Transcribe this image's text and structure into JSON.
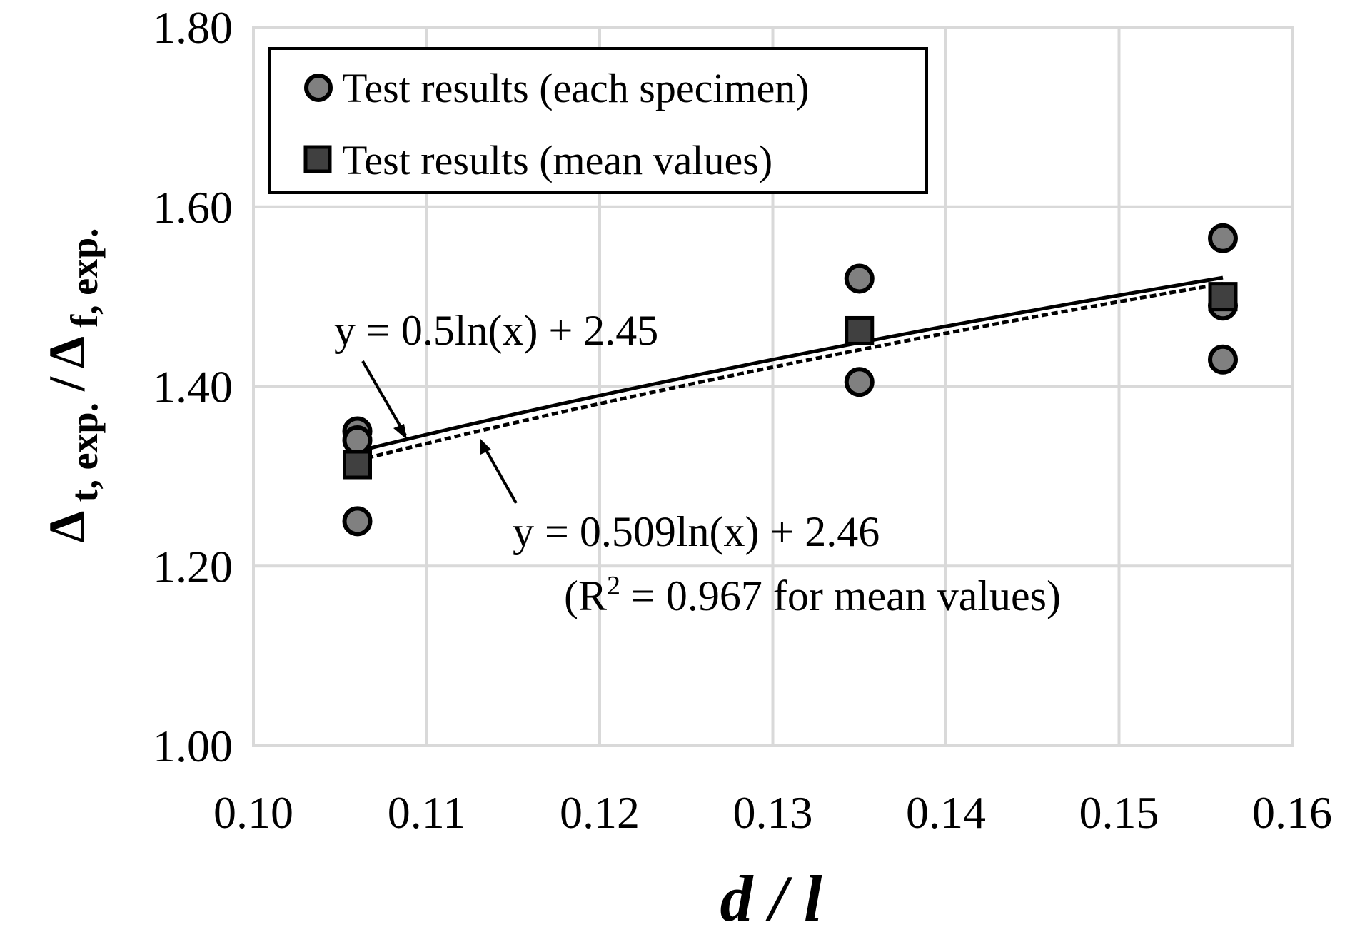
{
  "chart_data": {
    "type": "scatter",
    "title": "",
    "xlabel": "d / l",
    "ylabel": {
      "symbol1": "Δ",
      "sub1": "t, exp.",
      "slash": "/",
      "symbol2": "Δ",
      "sub2": "f, exp."
    },
    "xlim": [
      0.1,
      0.16
    ],
    "ylim": [
      1.0,
      1.8
    ],
    "xticks": [
      "0.10",
      "0.11",
      "0.12",
      "0.13",
      "0.14",
      "0.15",
      "0.16"
    ],
    "yticks": [
      "1.00",
      "1.20",
      "1.40",
      "1.60",
      "1.80"
    ],
    "grid": true,
    "legend_position": "top-left",
    "series": [
      {
        "name": "Test results (each specimen)",
        "marker": "circle",
        "color": "#808080",
        "points": [
          {
            "x": 0.106,
            "y": 1.35
          },
          {
            "x": 0.106,
            "y": 1.34
          },
          {
            "x": 0.106,
            "y": 1.25
          },
          {
            "x": 0.135,
            "y": 1.52
          },
          {
            "x": 0.135,
            "y": 1.405
          },
          {
            "x": 0.156,
            "y": 1.565
          },
          {
            "x": 0.156,
            "y": 1.49
          },
          {
            "x": 0.156,
            "y": 1.43
          }
        ]
      },
      {
        "name": "Test results (mean values)",
        "marker": "square",
        "color": "#404040",
        "points": [
          {
            "x": 0.106,
            "y": 1.313
          },
          {
            "x": 0.135,
            "y": 1.462
          },
          {
            "x": 0.156,
            "y": 1.5
          }
        ]
      }
    ],
    "fits": [
      {
        "name": "solid-fit",
        "style": "solid",
        "a": 0.5,
        "b": 2.45,
        "x_range": [
          0.106,
          0.156
        ]
      },
      {
        "name": "dashed-fit",
        "style": "dashed",
        "a": 0.509,
        "b": 2.46,
        "x_range": [
          0.106,
          0.156
        ]
      }
    ],
    "annotations": {
      "eq1": "y = 0.5ln(x)  + 2.45",
      "eq2": "y = 0.509ln(x)  + 2.46",
      "r2_open": "(R",
      "r2_sup": "2",
      "r2_rest": " = 0.967  for mean values)"
    }
  }
}
